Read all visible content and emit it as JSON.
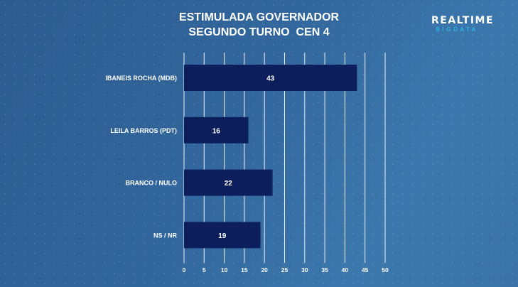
{
  "header": {
    "title_line1": "ESTIMULADA GOVERNADOR",
    "title_line2": "SEGUNDO TURNO  CEN 4"
  },
  "brand": {
    "name": "REALTIME",
    "tagline": "BIGDATA",
    "name_color": "#ffffff",
    "tagline_color": "#27c8f0"
  },
  "colors": {
    "bar": "#0c1f5c",
    "grid": "#ffffff"
  },
  "chart_data": {
    "type": "bar",
    "orientation": "horizontal",
    "categories": [
      "IBANEIS ROCHA (MDB)",
      "LEILA BARROS (PDT)",
      "BRANCO / NULO",
      "NS / NR"
    ],
    "values": [
      43,
      16,
      22,
      19
    ],
    "xlim": [
      0,
      50
    ],
    "xticks": [
      0,
      5,
      10,
      15,
      20,
      25,
      30,
      35,
      40,
      45,
      50
    ],
    "grid": true,
    "data_labels": true,
    "legend": "none"
  }
}
